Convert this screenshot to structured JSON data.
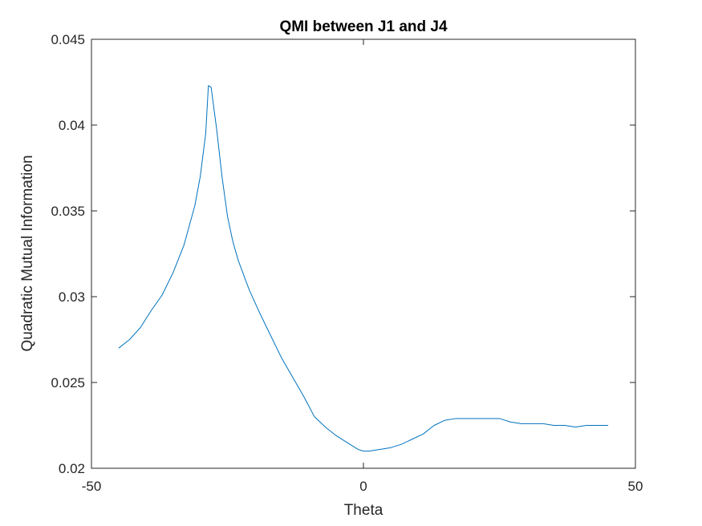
{
  "chart_data": {
    "type": "line",
    "title": "QMI between J1 and J4",
    "xlabel": "Theta",
    "ylabel": "Quadratic Mutual Information",
    "xlim": [
      -50,
      50
    ],
    "ylim": [
      0.02,
      0.045
    ],
    "xticks": [
      -50,
      0,
      50
    ],
    "xtick_labels": [
      "-50",
      "0",
      "50"
    ],
    "yticks": [
      0.02,
      0.025,
      0.03,
      0.035,
      0.04,
      0.045
    ],
    "ytick_labels": [
      "0.02",
      "0.025",
      "0.03",
      "0.035",
      "0.04",
      "0.045"
    ],
    "grid": false,
    "box": true,
    "series": [
      {
        "color": "#0072BD",
        "x": [
          -45,
          -43,
          -41,
          -39,
          -37,
          -35,
          -33,
          -31,
          -30,
          -29,
          -28.5,
          -28,
          -27,
          -26,
          -25,
          -24,
          -23,
          -21,
          -19,
          -17,
          -15,
          -13,
          -11,
          -9,
          -7,
          -5,
          -3,
          -1,
          0,
          1,
          3,
          5,
          7,
          9,
          11,
          13,
          15,
          17,
          19,
          21,
          23,
          25,
          26,
          27,
          29,
          31,
          33,
          35,
          37,
          39,
          41,
          43,
          45
        ],
        "y": [
          0.027,
          0.0275,
          0.0282,
          0.0292,
          0.0301,
          0.0314,
          0.033,
          0.0353,
          0.037,
          0.0395,
          0.0423,
          0.0422,
          0.0398,
          0.037,
          0.0347,
          0.0332,
          0.0321,
          0.0304,
          0.029,
          0.0277,
          0.0264,
          0.0253,
          0.0242,
          0.023,
          0.0224,
          0.0219,
          0.0215,
          0.0211,
          0.021,
          0.021,
          0.0211,
          0.0212,
          0.0214,
          0.0217,
          0.022,
          0.0225,
          0.0228,
          0.0229,
          0.0229,
          0.0229,
          0.0229,
          0.0229,
          0.0228,
          0.0227,
          0.0226,
          0.0226,
          0.0226,
          0.0225,
          0.0225,
          0.0224,
          0.0225,
          0.0225,
          0.0225
        ]
      }
    ]
  }
}
